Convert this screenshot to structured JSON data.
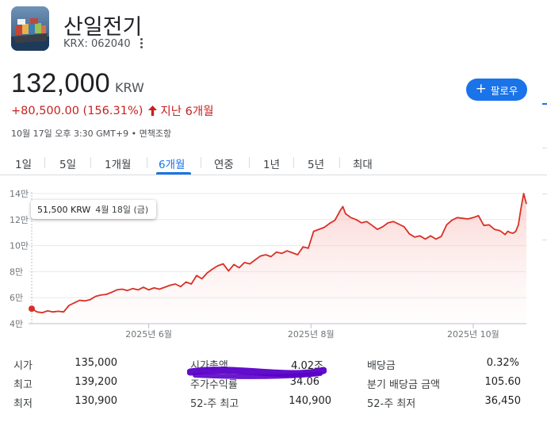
{
  "header": {
    "company_name": "산일전기",
    "ticker": "KRX: 062040",
    "more_icon": "more-vert-icon",
    "thumbnail_icon": "ship-thumbnail"
  },
  "quote": {
    "price": "132,000",
    "currency": "KRW",
    "change": "+80,500.00 (156.31%)",
    "period": "지난 6개월",
    "timestamp": "10월 17일 오후 3:30 GMT+9 • 면책조항",
    "change_color": "#c5221f"
  },
  "follow_button": {
    "label": "팔로우",
    "icon": "plus-icon",
    "color": "#1a73e8"
  },
  "tabs": [
    {
      "label": "1일"
    },
    {
      "label": "5일"
    },
    {
      "label": "1개월"
    },
    {
      "label": "6개월",
      "active": true
    },
    {
      "label": "연중"
    },
    {
      "label": "1년"
    },
    {
      "label": "5년"
    },
    {
      "label": "최대"
    }
  ],
  "tooltip": {
    "value": "51,500 KRW",
    "date": "4월 18일 (금)"
  },
  "chart_data": {
    "type": "area",
    "y_ticks": [
      "14만",
      "12만",
      "10만",
      "8만",
      "6만",
      "4만"
    ],
    "y_tick_values": [
      140000,
      120000,
      100000,
      80000,
      60000,
      40000
    ],
    "ylim": [
      40000,
      140000
    ],
    "x_ticks": [
      "2025년 6월",
      "2025년 8월",
      "2025년 10월"
    ],
    "x_tick_days": [
      44,
      105,
      166
    ],
    "x_range_days": [
      0,
      182
    ],
    "series": [
      {
        "color": "#d93025",
        "points": [
          [
            0,
            51500
          ],
          [
            2,
            49000
          ],
          [
            4,
            48500
          ],
          [
            6,
            49800
          ],
          [
            8,
            49000
          ],
          [
            10,
            49500
          ],
          [
            12,
            49000
          ],
          [
            14,
            54000
          ],
          [
            16,
            56000
          ],
          [
            18,
            58000
          ],
          [
            20,
            57500
          ],
          [
            22,
            58500
          ],
          [
            24,
            61000
          ],
          [
            26,
            62000
          ],
          [
            28,
            62500
          ],
          [
            30,
            64000
          ],
          [
            32,
            66000
          ],
          [
            34,
            66500
          ],
          [
            36,
            65500
          ],
          [
            38,
            67000
          ],
          [
            40,
            66000
          ],
          [
            42,
            68000
          ],
          [
            44,
            66000
          ],
          [
            46,
            67500
          ],
          [
            48,
            66500
          ],
          [
            50,
            68000
          ],
          [
            52,
            69500
          ],
          [
            54,
            70500
          ],
          [
            56,
            68500
          ],
          [
            58,
            72000
          ],
          [
            60,
            70500
          ],
          [
            62,
            77000
          ],
          [
            64,
            74500
          ],
          [
            66,
            79000
          ],
          [
            68,
            82000
          ],
          [
            70,
            84500
          ],
          [
            72,
            86000
          ],
          [
            74,
            80500
          ],
          [
            76,
            85500
          ],
          [
            78,
            83000
          ],
          [
            80,
            87000
          ],
          [
            82,
            86000
          ],
          [
            84,
            89000
          ],
          [
            86,
            92000
          ],
          [
            88,
            93000
          ],
          [
            90,
            91500
          ],
          [
            92,
            95000
          ],
          [
            94,
            94000
          ],
          [
            96,
            96000
          ],
          [
            98,
            94500
          ],
          [
            100,
            93000
          ],
          [
            102,
            99000
          ],
          [
            104,
            98000
          ],
          [
            106,
            111000
          ],
          [
            108,
            112500
          ],
          [
            110,
            114000
          ],
          [
            112,
            117000
          ],
          [
            114,
            119500
          ],
          [
            116,
            127000
          ],
          [
            117,
            130000
          ],
          [
            118,
            124500
          ],
          [
            120,
            121500
          ],
          [
            122,
            120000
          ],
          [
            124,
            117500
          ],
          [
            126,
            118500
          ],
          [
            128,
            115500
          ],
          [
            130,
            112500
          ],
          [
            132,
            114500
          ],
          [
            134,
            117500
          ],
          [
            136,
            118500
          ],
          [
            138,
            116500
          ],
          [
            140,
            114500
          ],
          [
            142,
            109000
          ],
          [
            144,
            106500
          ],
          [
            146,
            107500
          ],
          [
            148,
            105000
          ],
          [
            150,
            107500
          ],
          [
            152,
            105000
          ],
          [
            154,
            107000
          ],
          [
            156,
            116000
          ],
          [
            158,
            119500
          ],
          [
            160,
            121500
          ],
          [
            162,
            121000
          ],
          [
            164,
            120500
          ],
          [
            166,
            121500
          ],
          [
            168,
            123000
          ],
          [
            170,
            115500
          ],
          [
            172,
            116000
          ],
          [
            174,
            112500
          ],
          [
            176,
            111500
          ],
          [
            178,
            108500
          ],
          [
            179,
            111000
          ],
          [
            180,
            110000
          ],
          [
            181,
            109500
          ],
          [
            182,
            111000
          ],
          [
            183,
            116000
          ],
          [
            184,
            129000
          ],
          [
            185,
            140000
          ],
          [
            186,
            132000
          ]
        ]
      }
    ],
    "grid": true,
    "line_color": "#d93025",
    "fill_color": "#fce8e6"
  },
  "stats": {
    "rows": [
      [
        {
          "label": "시가",
          "value": "135,000"
        },
        {
          "label": "시가총액",
          "value": "4.02조"
        },
        {
          "label": "배당금",
          "value": "0.32%"
        }
      ],
      [
        {
          "label": "최고",
          "value": "139,200"
        },
        {
          "label": "주가수익률",
          "value": "34.06"
        },
        {
          "label": "분기 배당금 금액",
          "value": "105.60"
        }
      ],
      [
        {
          "label": "최저",
          "value": "130,900"
        },
        {
          "label": "52-주 최고",
          "value": "140,900"
        },
        {
          "label": "52-주 최저",
          "value": "36,450"
        }
      ]
    ]
  },
  "annotation_color": "#5a00c8"
}
